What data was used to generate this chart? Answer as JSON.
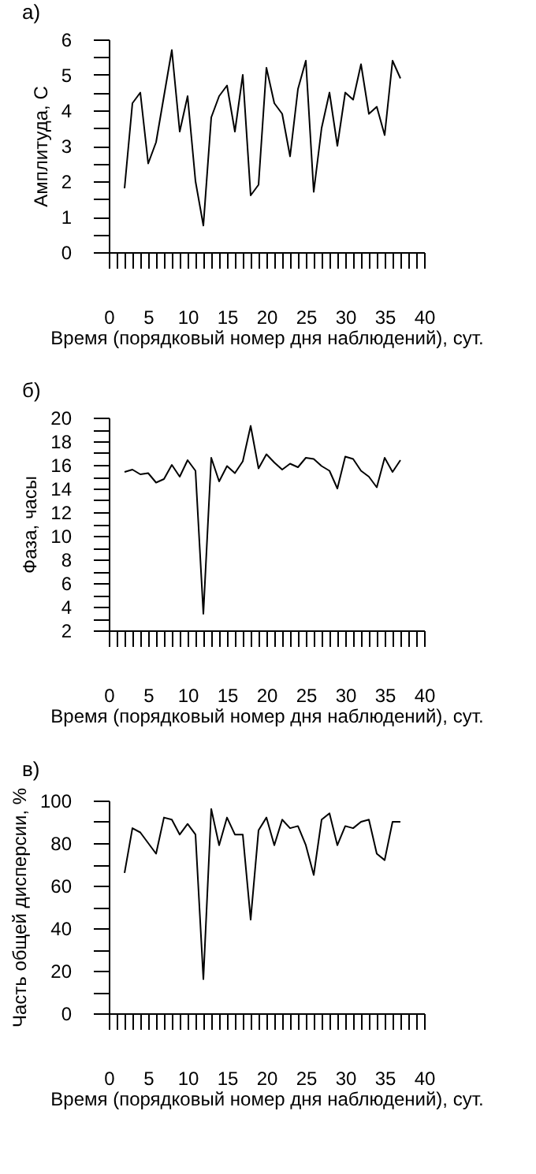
{
  "chart_data": [
    {
      "type": "line",
      "title": "а)",
      "xlabel": "Время (порядковый номер дня наблюдений), сут.",
      "ylabel": "Амплитуда, С",
      "x": [
        2,
        3,
        4,
        5,
        6,
        7,
        8,
        9,
        10,
        11,
        12,
        13,
        14,
        15,
        16,
        17,
        18,
        19,
        20,
        21,
        22,
        23,
        24,
        25,
        26,
        27,
        28,
        29,
        30,
        31,
        32,
        33,
        34,
        35,
        36,
        37
      ],
      "series": [
        {
          "color": "#000000",
          "values": [
            1.8,
            4.2,
            4.5,
            2.5,
            3.1,
            4.4,
            5.7,
            3.4,
            4.4,
            2.0,
            0.75,
            3.8,
            4.4,
            4.7,
            3.4,
            5.0,
            1.6,
            1.9,
            5.2,
            4.2,
            3.9,
            2.7,
            4.6,
            5.4,
            1.7,
            3.5,
            4.5,
            3.0,
            4.5,
            4.3,
            5.3,
            3.9,
            4.1,
            3.3,
            5.4,
            4.9
          ]
        }
      ],
      "xlim": [
        0,
        40
      ],
      "ylim": [
        0,
        6
      ],
      "xticks": [
        0,
        {
          "value": 1,
          "label": null
        },
        {
          "value": 2,
          "label": null
        },
        {
          "value": 3,
          "label": null
        },
        {
          "value": 4,
          "label": null
        },
        5,
        {
          "value": 6,
          "label": null
        },
        {
          "value": 7,
          "label": null
        },
        {
          "value": 8,
          "label": null
        },
        {
          "value": 9,
          "label": null
        },
        10,
        {
          "value": 11,
          "label": null
        },
        {
          "value": 12,
          "label": null
        },
        {
          "value": 13,
          "label": null
        },
        {
          "value": 14,
          "label": null
        },
        15,
        {
          "value": 16,
          "label": null
        },
        {
          "value": 17,
          "label": null
        },
        {
          "value": 18,
          "label": null
        },
        {
          "value": 19,
          "label": null
        },
        20,
        {
          "value": 21,
          "label": null
        },
        {
          "value": 22,
          "label": null
        },
        {
          "value": 23,
          "label": null
        },
        {
          "value": 24,
          "label": null
        },
        25,
        {
          "value": 26,
          "label": null
        },
        {
          "value": 27,
          "label": null
        },
        {
          "value": 28,
          "label": null
        },
        {
          "value": 29,
          "label": null
        },
        30,
        {
          "value": 31,
          "label": null
        },
        {
          "value": 32,
          "label": null
        },
        {
          "value": 33,
          "label": null
        },
        {
          "value": 34,
          "label": null
        },
        35,
        {
          "value": 36,
          "label": null
        },
        {
          "value": 37,
          "label": null
        },
        {
          "value": 38,
          "label": null
        },
        {
          "value": 39,
          "label": null
        },
        40
      ],
      "yticks": [
        0,
        {
          "value": 0.5,
          "label": null
        },
        1,
        {
          "value": 1.5,
          "label": null
        },
        2,
        {
          "value": 2.5,
          "label": null
        },
        3,
        {
          "value": 3.5,
          "label": null
        },
        4,
        {
          "value": 4.5,
          "label": null
        },
        5,
        {
          "value": 5.5,
          "label": null
        },
        6
      ],
      "grid": false,
      "legend": false,
      "marker": "none",
      "line_style": "solid"
    },
    {
      "type": "line",
      "title": "б)",
      "xlabel": "Время (порядковый номер дня наблюдений), сут.",
      "ylabel": "Фаза, часы",
      "x": [
        2,
        3,
        4,
        5,
        6,
        7,
        8,
        9,
        10,
        11,
        12,
        13,
        14,
        15,
        16,
        17,
        18,
        19,
        20,
        21,
        22,
        23,
        24,
        25,
        26,
        27,
        28,
        29,
        30,
        31,
        32,
        33,
        34,
        35,
        36,
        37
      ],
      "series": [
        {
          "color": "#000000",
          "values": [
            15.4,
            15.6,
            15.2,
            15.3,
            14.5,
            14.8,
            16.0,
            15.0,
            16.4,
            15.5,
            3.4,
            16.6,
            14.6,
            15.9,
            15.3,
            16.3,
            19.3,
            15.7,
            16.9,
            16.2,
            15.6,
            16.1,
            15.8,
            16.6,
            16.5,
            15.9,
            15.5,
            14.0,
            16.7,
            16.5,
            15.5,
            15.0,
            14.1,
            16.6,
            15.4,
            16.4
          ]
        }
      ],
      "xlim": [
        0,
        40
      ],
      "ylim": [
        2,
        20
      ],
      "xticks": [
        0,
        {
          "value": 1,
          "label": null
        },
        {
          "value": 2,
          "label": null
        },
        {
          "value": 3,
          "label": null
        },
        {
          "value": 4,
          "label": null
        },
        5,
        {
          "value": 6,
          "label": null
        },
        {
          "value": 7,
          "label": null
        },
        {
          "value": 8,
          "label": null
        },
        {
          "value": 9,
          "label": null
        },
        10,
        {
          "value": 11,
          "label": null
        },
        {
          "value": 12,
          "label": null
        },
        {
          "value": 13,
          "label": null
        },
        {
          "value": 14,
          "label": null
        },
        15,
        {
          "value": 16,
          "label": null
        },
        {
          "value": 17,
          "label": null
        },
        {
          "value": 18,
          "label": null
        },
        {
          "value": 19,
          "label": null
        },
        20,
        {
          "value": 21,
          "label": null
        },
        {
          "value": 22,
          "label": null
        },
        {
          "value": 23,
          "label": null
        },
        {
          "value": 24,
          "label": null
        },
        25,
        {
          "value": 26,
          "label": null
        },
        {
          "value": 27,
          "label": null
        },
        {
          "value": 28,
          "label": null
        },
        {
          "value": 29,
          "label": null
        },
        30,
        {
          "value": 31,
          "label": null
        },
        {
          "value": 32,
          "label": null
        },
        {
          "value": 33,
          "label": null
        },
        {
          "value": 34,
          "label": null
        },
        35,
        {
          "value": 36,
          "label": null
        },
        {
          "value": 37,
          "label": null
        },
        {
          "value": 38,
          "label": null
        },
        {
          "value": 39,
          "label": null
        },
        40
      ],
      "yticks": [
        2,
        {
          "value": 3,
          "label": null
        },
        4,
        {
          "value": 5,
          "label": null
        },
        6,
        {
          "value": 7,
          "label": null
        },
        8,
        {
          "value": 9,
          "label": null
        },
        10,
        {
          "value": 11,
          "label": null
        },
        12,
        {
          "value": 13,
          "label": null
        },
        14,
        {
          "value": 15,
          "label": null
        },
        16,
        {
          "value": 17,
          "label": null
        },
        18,
        {
          "value": 19,
          "label": null
        },
        20
      ],
      "grid": false,
      "legend": false,
      "marker": "none",
      "line_style": "solid"
    },
    {
      "type": "line",
      "title": "в)",
      "xlabel": "Время (порядковый номер дня наблюдений), сут.",
      "ylabel": "Часть общей дисперсии, %",
      "x": [
        2,
        3,
        4,
        5,
        6,
        7,
        8,
        9,
        10,
        11,
        12,
        13,
        14,
        15,
        16,
        17,
        18,
        19,
        20,
        21,
        22,
        23,
        24,
        25,
        26,
        27,
        28,
        29,
        30,
        31,
        32,
        33,
        34,
        35,
        36,
        37
      ],
      "series": [
        {
          "color": "#000000",
          "values": [
            66,
            87,
            85,
            80,
            75,
            92,
            91,
            84,
            89,
            84,
            16,
            96,
            79,
            92,
            84,
            84,
            44,
            86,
            92,
            79,
            91,
            87,
            88,
            79,
            65,
            91,
            94,
            79,
            88,
            87,
            90,
            91,
            75,
            72,
            90,
            90
          ]
        }
      ],
      "xlim": [
        0,
        40
      ],
      "ylim": [
        0,
        100
      ],
      "xticks": [
        0,
        {
          "value": 1,
          "label": null
        },
        {
          "value": 2,
          "label": null
        },
        {
          "value": 3,
          "label": null
        },
        {
          "value": 4,
          "label": null
        },
        5,
        {
          "value": 6,
          "label": null
        },
        {
          "value": 7,
          "label": null
        },
        {
          "value": 8,
          "label": null
        },
        {
          "value": 9,
          "label": null
        },
        10,
        {
          "value": 11,
          "label": null
        },
        {
          "value": 12,
          "label": null
        },
        {
          "value": 13,
          "label": null
        },
        {
          "value": 14,
          "label": null
        },
        15,
        {
          "value": 16,
          "label": null
        },
        {
          "value": 17,
          "label": null
        },
        {
          "value": 18,
          "label": null
        },
        {
          "value": 19,
          "label": null
        },
        20,
        {
          "value": 21,
          "label": null
        },
        {
          "value": 22,
          "label": null
        },
        {
          "value": 23,
          "label": null
        },
        {
          "value": 24,
          "label": null
        },
        25,
        {
          "value": 26,
          "label": null
        },
        {
          "value": 27,
          "label": null
        },
        {
          "value": 28,
          "label": null
        },
        {
          "value": 29,
          "label": null
        },
        30,
        {
          "value": 31,
          "label": null
        },
        {
          "value": 32,
          "label": null
        },
        {
          "value": 33,
          "label": null
        },
        {
          "value": 34,
          "label": null
        },
        35,
        {
          "value": 36,
          "label": null
        },
        {
          "value": 37,
          "label": null
        },
        {
          "value": 38,
          "label": null
        },
        {
          "value": 39,
          "label": null
        },
        40
      ],
      "yticks": [
        0,
        {
          "value": 10,
          "label": null
        },
        20,
        {
          "value": 30,
          "label": null
        },
        40,
        {
          "value": 50,
          "label": null
        },
        60,
        {
          "value": 70,
          "label": null
        },
        80,
        {
          "value": 90,
          "label": null
        },
        100
      ],
      "grid": false,
      "legend": false,
      "marker": "none",
      "line_style": "solid"
    }
  ]
}
